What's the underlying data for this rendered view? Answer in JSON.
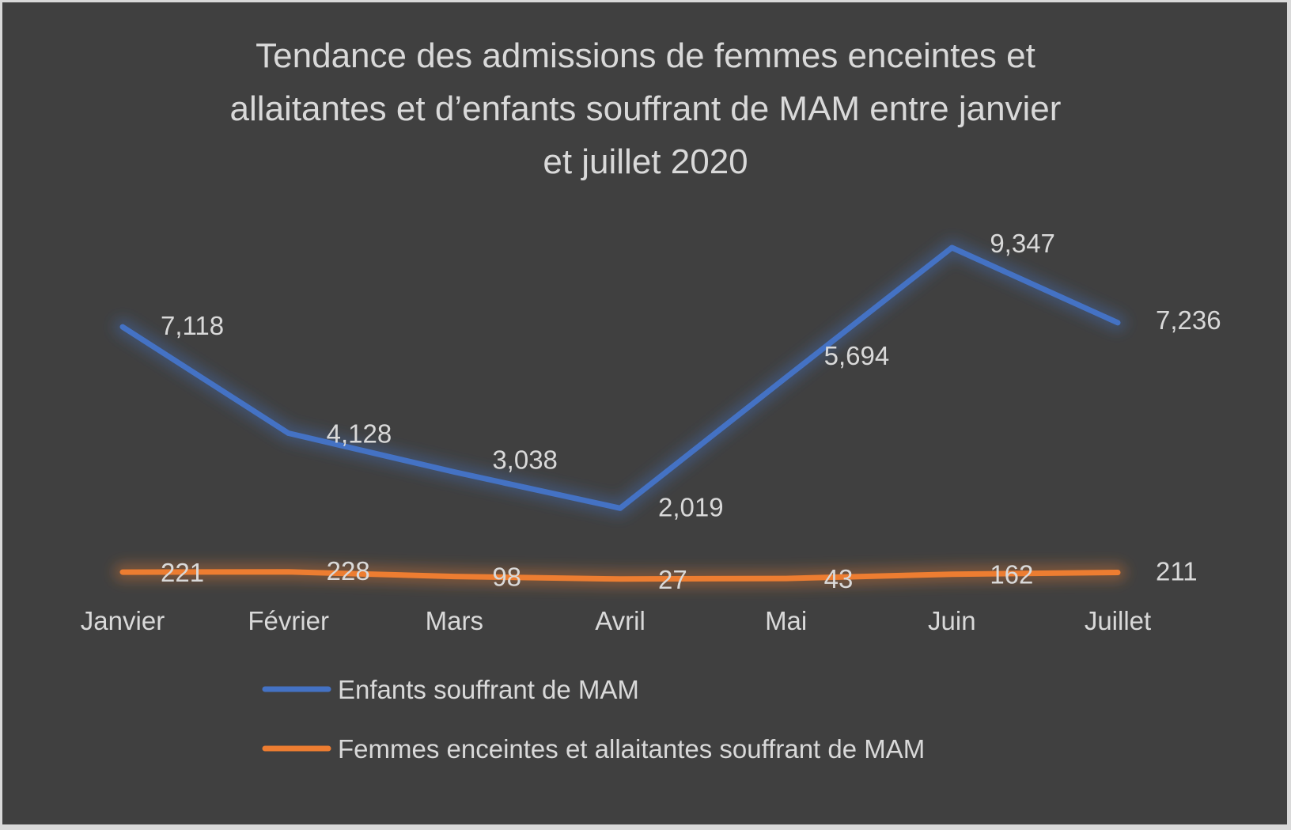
{
  "chart_data": {
    "type": "line",
    "title": "Tendance des admissions de femmes enceintes et allaitantes et d’enfants souffrant de MAM entre janvier et juillet 2020",
    "title_lines": [
      "Tendance des admissions de femmes enceintes et",
      "allaitantes et d’enfants souffrant de MAM entre janvier",
      "et juillet 2020"
    ],
    "categories": [
      "Janvier",
      "Février",
      "Mars",
      "Avril",
      "Mai",
      "Juin",
      "Juillet"
    ],
    "series": [
      {
        "name": "Enfants souffrant de MAM",
        "color": "#4472c4",
        "values": [
          7118,
          4128,
          3038,
          2019,
          5694,
          9347,
          7236
        ],
        "labels": [
          "7,118",
          "4,128",
          "3,038",
          "2,019",
          "5,694",
          "9,347",
          "7,236"
        ]
      },
      {
        "name": "Femmes enceintes et allaitantes souffrant de MAM",
        "color": "#ed7d31",
        "values": [
          221,
          228,
          98,
          27,
          43,
          162,
          211
        ],
        "labels": [
          "221",
          "228",
          "98",
          "27",
          "43",
          "162",
          "211"
        ]
      }
    ],
    "xlabel": "",
    "ylabel": "",
    "ylim": [
      0,
      9347
    ],
    "grid": false,
    "y_axis_visible": false,
    "legend_position": "bottom",
    "background": "#404040",
    "text_color": "#d9d9d9"
  }
}
